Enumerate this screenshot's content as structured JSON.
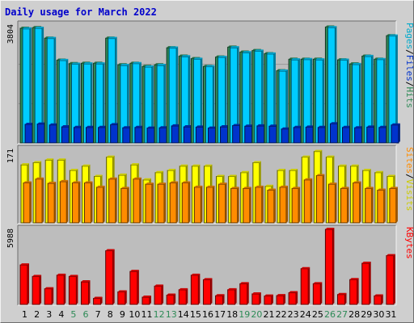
{
  "chart_data": {
    "type": "bar",
    "title": "Daily usage for March 2022",
    "categories": [
      "1",
      "2",
      "3",
      "4",
      "5",
      "6",
      "7",
      "8",
      "9",
      "10",
      "11",
      "12",
      "13",
      "14",
      "15",
      "16",
      "17",
      "18",
      "19",
      "20",
      "21",
      "22",
      "23",
      "24",
      "25",
      "26",
      "27",
      "28",
      "29",
      "30",
      "31"
    ],
    "weekend_days": [
      "5",
      "6",
      "12",
      "13",
      "19",
      "20",
      "26",
      "27"
    ],
    "panels": [
      {
        "key": "pages_files_hits",
        "ymax": 3804,
        "ymax_label": "3804",
        "legend": [
          "Pages",
          "/",
          "Files",
          "/",
          "Hits"
        ],
        "series": [
          {
            "name": "Hits",
            "color": "#2e8b57",
            "values": [
              3700,
              3720,
              3380,
              2670,
              2560,
              2570,
              2570,
              3380,
              2520,
              2570,
              2470,
              2520,
              3070,
              2800,
              2720,
              2470,
              2770,
              3090,
              2930,
              2980,
              2880,
              2330,
              2700,
              2700,
              2700,
              3740,
              2680,
              2550,
              2800,
              2700,
              3460
            ]
          },
          {
            "name": "Files",
            "color": "#00ccff",
            "values": [
              3680,
              3700,
              3370,
              2660,
              2540,
              2550,
              2550,
              3370,
              2500,
              2560,
              2450,
              2500,
              3060,
              2780,
              2700,
              2460,
              2760,
              3070,
              2910,
              2960,
              2870,
              2320,
              2680,
              2690,
              2680,
              3720,
              2670,
              2530,
              2790,
              2690,
              3450
            ]
          },
          {
            "name": "Pages",
            "color": "#0033cc",
            "values": [
              600,
              610,
              580,
              520,
              500,
              500,
              500,
              590,
              490,
              500,
              480,
              490,
              550,
              520,
              510,
              480,
              520,
              560,
              540,
              550,
              540,
              450,
              500,
              510,
              500,
              620,
              500,
              490,
              510,
              500,
              580
            ]
          }
        ]
      },
      {
        "key": "sites_visits",
        "ymax": 171,
        "ymax_label": "171",
        "legend": [
          "Sites",
          "/",
          "Visits"
        ],
        "series": [
          {
            "name": "Visits",
            "color": "#ffff00",
            "values": [
              135,
              140,
              146,
              146,
              122,
              132,
              108,
              153,
              111,
              135,
              100,
              117,
              122,
              132,
              132,
              132,
              108,
              108,
              117,
              140,
              85,
              122,
              122,
              153,
              166,
              153,
              132,
              132,
              122,
              117,
              108
            ]
          },
          {
            "name": "Sites",
            "color": "#ff8c00",
            "values": [
              93,
              102,
              92,
              96,
              93,
              93,
              83,
              102,
              80,
              102,
              90,
              90,
              93,
              93,
              83,
              83,
              90,
              80,
              80,
              83,
              76,
              83,
              80,
              100,
              110,
              90,
              80,
              93,
              80,
              76,
              80
            ]
          }
        ]
      },
      {
        "key": "kbytes",
        "ymax": 5988,
        "ymax_label": "5988",
        "legend": [
          "KBytes"
        ],
        "series": [
          {
            "name": "KBytes",
            "color": "#ff0000",
            "values": [
              3150,
              2230,
              1250,
              2330,
              2230,
              1800,
              480,
              4280,
              1000,
              2630,
              580,
              1460,
              740,
              1170,
              2330,
              1970,
              690,
              1170,
              1650,
              840,
              670,
              700,
              930,
              2850,
              1650,
              5988,
              790,
              1980,
              3280,
              680,
              3890
            ]
          }
        ]
      }
    ]
  }
}
